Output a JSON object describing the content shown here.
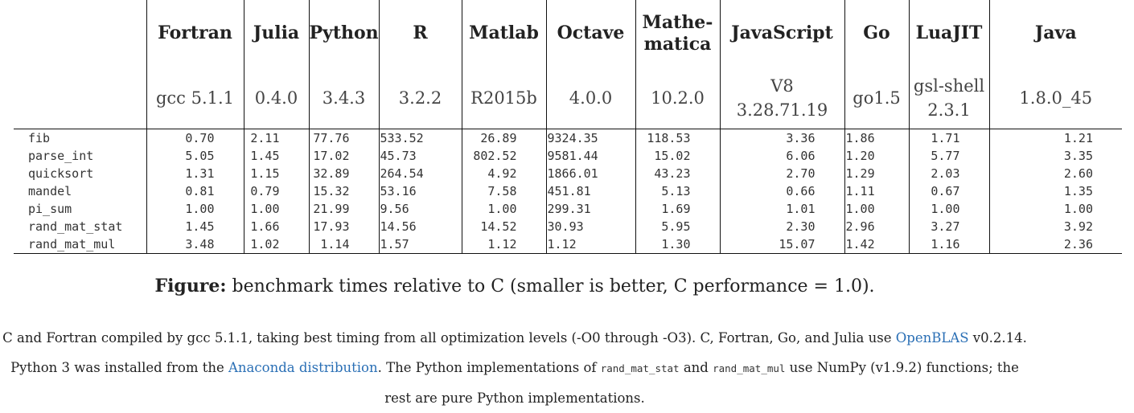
{
  "table": {
    "languages": [
      {
        "name": "Fortran",
        "version": "gcc 5.1.1"
      },
      {
        "name": "Julia",
        "version": "0.4.0"
      },
      {
        "name": "Python",
        "version": "3.4.3"
      },
      {
        "name": "R",
        "version": "3.2.2"
      },
      {
        "name": "Matlab",
        "version": "R2015b"
      },
      {
        "name": "Octave",
        "version": "4.0.0"
      },
      {
        "name": "Mathe-\nmatica",
        "version": "10.2.0"
      },
      {
        "name": "JavaScript",
        "version": "V8\n3.28.71.19"
      },
      {
        "name": "Go",
        "version": "go1.5"
      },
      {
        "name": "LuaJIT",
        "version": "gsl-shell\n2.3.1"
      },
      {
        "name": "Java",
        "version": "1.8.0_45"
      }
    ],
    "rows": [
      {
        "name": "fib",
        "values": [
          "0.70",
          "2.11",
          "77.76",
          "533.52",
          "26.89",
          "9324.35",
          "118.53",
          "3.36",
          "1.86",
          "1.71",
          "1.21"
        ]
      },
      {
        "name": "parse_int",
        "values": [
          "5.05",
          "1.45",
          "17.02",
          "45.73",
          "802.52",
          "9581.44",
          "15.02",
          "6.06",
          "1.20",
          "5.77",
          "3.35"
        ]
      },
      {
        "name": "quicksort",
        "values": [
          "1.31",
          "1.15",
          "32.89",
          "264.54",
          "4.92",
          "1866.01",
          "43.23",
          "2.70",
          "1.29",
          "2.03",
          "2.60"
        ]
      },
      {
        "name": "mandel",
        "values": [
          "0.81",
          "0.79",
          "15.32",
          "53.16",
          "7.58",
          "451.81",
          "5.13",
          "0.66",
          "1.11",
          "0.67",
          "1.35"
        ]
      },
      {
        "name": "pi_sum",
        "values": [
          "1.00",
          "1.00",
          "21.99",
          "9.56",
          "1.00",
          "299.31",
          "1.69",
          "1.01",
          "1.00",
          "1.00",
          "1.00"
        ]
      },
      {
        "name": "rand_mat_stat",
        "values": [
          "1.45",
          "1.66",
          "17.93",
          "14.56",
          "14.52",
          "30.93",
          "5.95",
          "2.30",
          "2.96",
          "3.27",
          "3.92"
        ]
      },
      {
        "name": "rand_mat_mul",
        "values": [
          "3.48",
          "1.02",
          "1.14",
          "1.57",
          "1.12",
          "1.12",
          "1.30",
          "15.07",
          "1.42",
          "1.16",
          "2.36"
        ]
      }
    ]
  },
  "caption": {
    "label": "Figure:",
    "text": " benchmark times relative to C (smaller is better, C performance = 1.0)."
  },
  "notes": {
    "line1_pre": "C and Fortran compiled by gcc 5.1.1, taking best timing from all optimization levels (-O0 through -O3). C, Fortran, Go, and Julia use ",
    "openblas_link": "OpenBLAS",
    "line1_post": " v0.2.14.",
    "line2_pre": "Python 3 was installed from the ",
    "anaconda_link": "Anaconda distribution",
    "line2_mid": ". The Python implementations of ",
    "code1": "rand_mat_stat",
    "line2_and": " and ",
    "code2": "rand_mat_mul",
    "line2_post": " use NumPy (v1.9.2) functions; the",
    "line3": "rest are pure Python implementations."
  },
  "colors": {
    "link": "#2a6fb5",
    "text": "#222222",
    "rule": "#111111"
  }
}
